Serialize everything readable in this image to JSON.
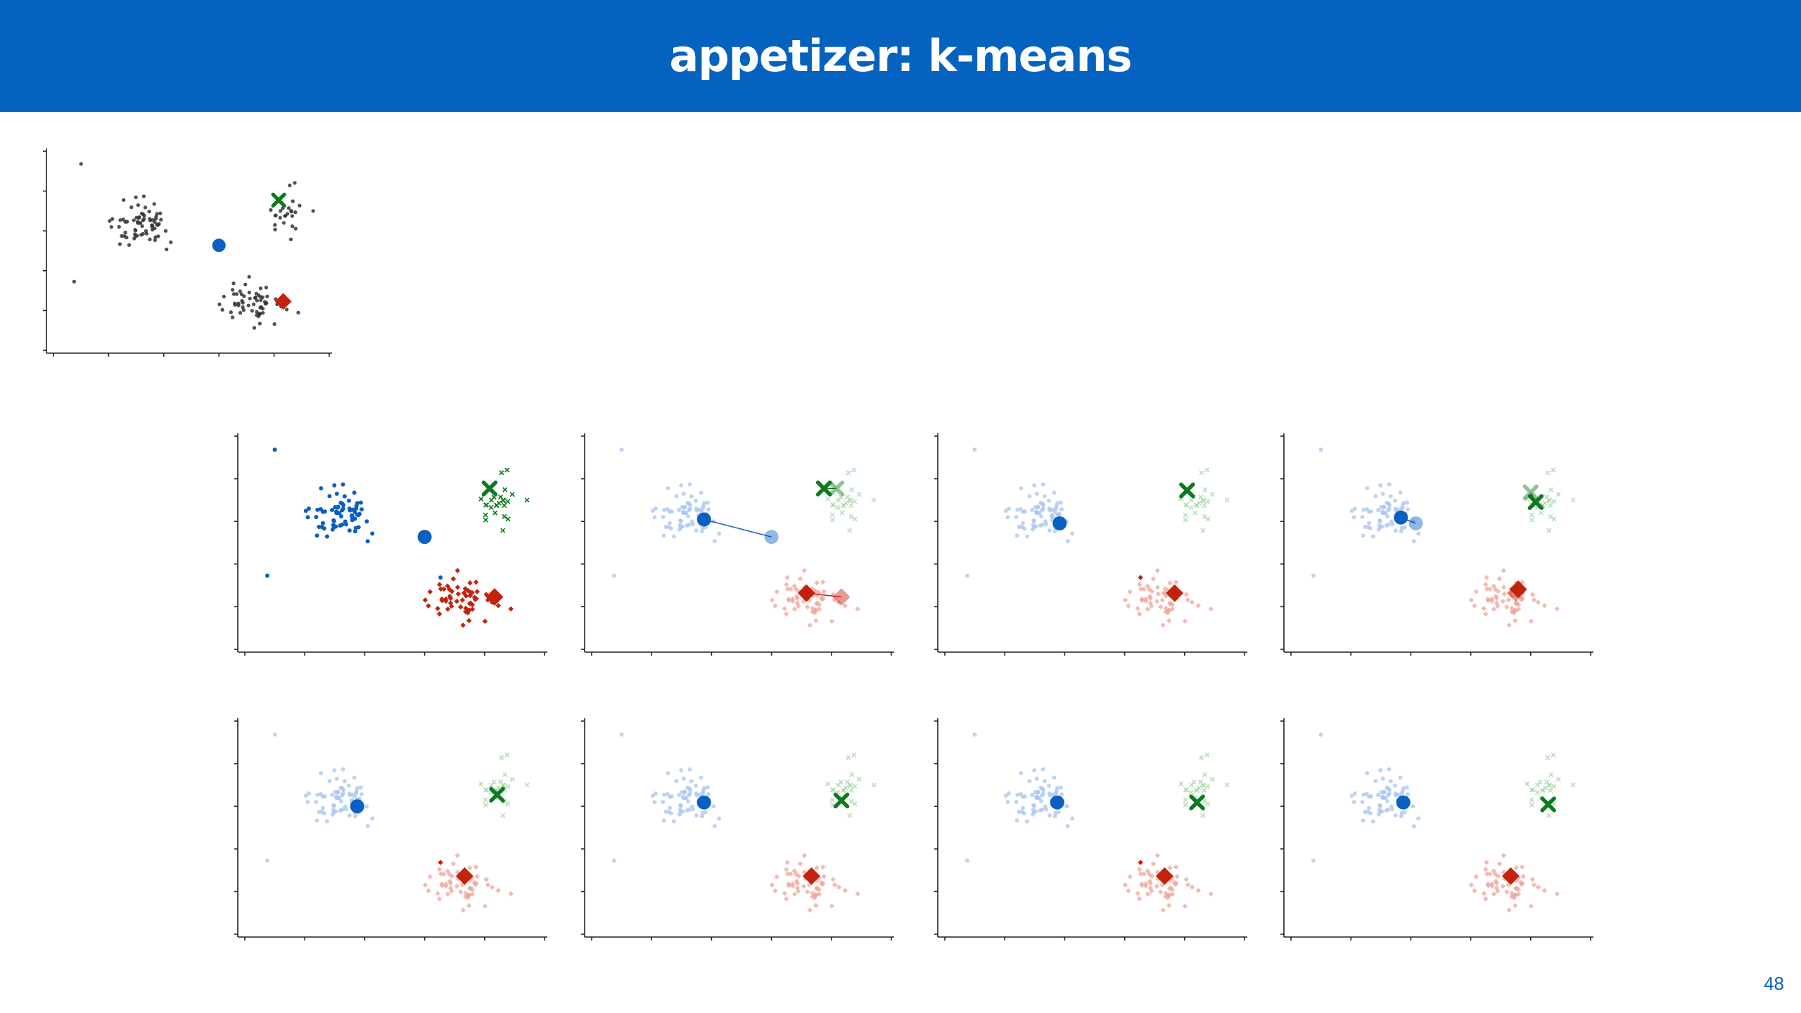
{
  "slide": {
    "title": "appetizer: k-means",
    "page_number": "48"
  },
  "colors": {
    "header_bg": "#0563bf",
    "data_gray": "#333333",
    "cluster_blue": "#0a5fc2",
    "cluster_red": "#c3220e",
    "cluster_green": "#0d7a1e"
  },
  "chart_data": [
    {
      "panel": "initial",
      "type": "scatter",
      "title": "",
      "xlabel": "",
      "ylabel": "",
      "x_range": [
        0,
        12
      ],
      "y_range": [
        -1,
        10
      ],
      "centroids": [
        {
          "cluster": "blue",
          "marker": "circle",
          "x": 7.2,
          "y": 4.8
        },
        {
          "cluster": "green",
          "marker": "x",
          "x": 9.8,
          "y": 7.3
        },
        {
          "cluster": "red",
          "marker": "diamond",
          "x": 10.0,
          "y": 1.7
        }
      ]
    },
    {
      "panel": "step-1",
      "type": "scatter",
      "x_range": [
        0,
        12
      ],
      "y_range": [
        -1,
        10
      ],
      "centroids": [
        {
          "cluster": "blue",
          "marker": "circle",
          "x": 7.2,
          "y": 4.8
        },
        {
          "cluster": "green",
          "marker": "x",
          "x": 9.8,
          "y": 7.3
        },
        {
          "cluster": "red",
          "marker": "diamond",
          "x": 10.0,
          "y": 1.7
        }
      ]
    },
    {
      "panel": "step-2",
      "type": "scatter",
      "x_range": [
        0,
        12
      ],
      "y_range": [
        -1,
        10
      ],
      "centroids": [
        {
          "cluster": "blue",
          "marker": "circle",
          "x": 4.5,
          "y": 5.7,
          "prev_x": 7.2,
          "prev_y": 4.8
        },
        {
          "cluster": "green",
          "marker": "x",
          "x": 9.3,
          "y": 7.3,
          "prev_x": 9.8,
          "prev_y": 7.3
        },
        {
          "cluster": "red",
          "marker": "diamond",
          "x": 8.6,
          "y": 1.9,
          "prev_x": 10.0,
          "prev_y": 1.7
        }
      ]
    },
    {
      "panel": "step-3",
      "type": "scatter",
      "x_range": [
        0,
        12
      ],
      "y_range": [
        -1,
        10
      ],
      "centroids": [
        {
          "cluster": "blue",
          "marker": "circle",
          "x": 4.6,
          "y": 5.5
        },
        {
          "cluster": "green",
          "marker": "x",
          "x": 9.7,
          "y": 7.2
        },
        {
          "cluster": "red",
          "marker": "diamond",
          "x": 9.2,
          "y": 1.9
        }
      ]
    },
    {
      "panel": "step-4",
      "type": "scatter",
      "x_range": [
        0,
        12
      ],
      "y_range": [
        -1,
        10
      ],
      "centroids": [
        {
          "cluster": "blue",
          "marker": "circle",
          "x": 4.4,
          "y": 5.8,
          "prev_x": 5.0,
          "prev_y": 5.5
        },
        {
          "cluster": "green",
          "marker": "x",
          "x": 9.8,
          "y": 6.6,
          "prev_x": 9.6,
          "prev_y": 7.1
        },
        {
          "cluster": "red",
          "marker": "diamond",
          "x": 9.1,
          "y": 2.1,
          "prev_x": 9.0,
          "prev_y": 1.9
        }
      ]
    },
    {
      "panel": "step-5",
      "type": "scatter",
      "x_range": [
        0,
        12
      ],
      "y_range": [
        -1,
        10
      ],
      "centroids": [
        {
          "cluster": "blue",
          "marker": "circle",
          "x": 4.5,
          "y": 5.6
        },
        {
          "cluster": "green",
          "marker": "x",
          "x": 10.1,
          "y": 6.2
        },
        {
          "cluster": "red",
          "marker": "diamond",
          "x": 8.8,
          "y": 2.0
        }
      ]
    },
    {
      "panel": "step-6",
      "type": "scatter",
      "x_range": [
        0,
        12
      ],
      "y_range": [
        -1,
        10
      ],
      "centroids": [
        {
          "cluster": "blue",
          "marker": "circle",
          "x": 4.5,
          "y": 5.8
        },
        {
          "cluster": "green",
          "marker": "x",
          "x": 10.0,
          "y": 5.9
        },
        {
          "cluster": "red",
          "marker": "diamond",
          "x": 8.8,
          "y": 2.0
        }
      ]
    },
    {
      "panel": "step-7",
      "type": "scatter",
      "x_range": [
        0,
        12
      ],
      "y_range": [
        -1,
        10
      ],
      "centroids": [
        {
          "cluster": "blue",
          "marker": "circle",
          "x": 4.5,
          "y": 5.8
        },
        {
          "cluster": "green",
          "marker": "x",
          "x": 10.1,
          "y": 5.8
        },
        {
          "cluster": "red",
          "marker": "diamond",
          "x": 8.8,
          "y": 2.0
        }
      ]
    },
    {
      "panel": "step-8",
      "type": "scatter",
      "x_range": [
        0,
        12
      ],
      "y_range": [
        -1,
        10
      ],
      "centroids": [
        {
          "cluster": "blue",
          "marker": "circle",
          "x": 4.5,
          "y": 5.8
        },
        {
          "cluster": "green",
          "marker": "x",
          "x": 10.3,
          "y": 5.7
        },
        {
          "cluster": "red",
          "marker": "diamond",
          "x": 8.8,
          "y": 2.0
        }
      ]
    }
  ]
}
